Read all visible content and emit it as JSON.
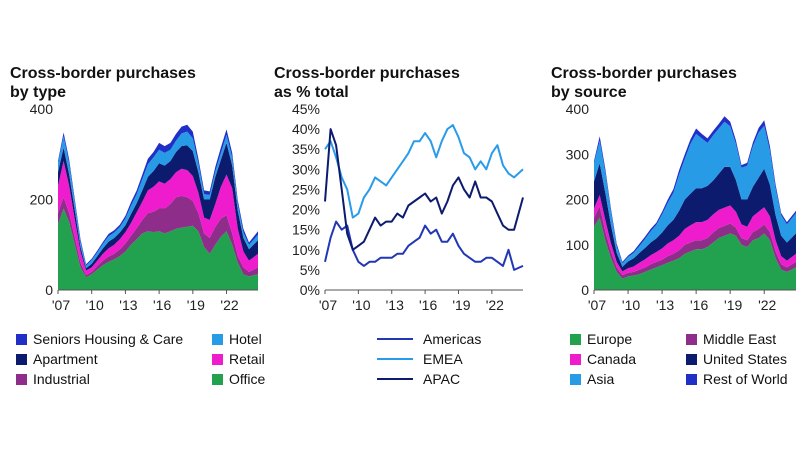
{
  "chart_data": [
    {
      "type": "area",
      "stacked": true,
      "title": "Cross-border purchases by type",
      "title_lines": [
        "Cross-border purchases",
        "by type"
      ],
      "xlabel": "",
      "ylabel": "",
      "ylim": [
        0,
        400
      ],
      "y_ticks": [
        0,
        200,
        400
      ],
      "y_tick_labels": [
        "0",
        "200",
        "400"
      ],
      "xlim": [
        2007,
        2024.8
      ],
      "x_ticks": [
        2007,
        2010,
        2013,
        2016,
        2019,
        2022
      ],
      "x_tick_labels": [
        "'07",
        "'10",
        "'13",
        "'16",
        "'19",
        "'22"
      ],
      "x": [
        2007.0,
        2007.5,
        2008.0,
        2008.5,
        2009.0,
        2009.5,
        2010.0,
        2010.5,
        2011.0,
        2011.5,
        2012.0,
        2012.5,
        2013.0,
        2013.5,
        2014.0,
        2014.5,
        2015.0,
        2015.5,
        2016.0,
        2016.5,
        2017.0,
        2017.5,
        2018.0,
        2018.5,
        2019.0,
        2019.5,
        2020.0,
        2020.5,
        2021.0,
        2021.5,
        2022.0,
        2022.5,
        2023.0,
        2023.5,
        2024.0,
        2024.8
      ],
      "series": [
        {
          "name": "Office",
          "color": "#22a14e",
          "values": [
            145,
            180,
            150,
            100,
            50,
            28,
            35,
            45,
            55,
            62,
            68,
            75,
            85,
            100,
            112,
            125,
            130,
            128,
            130,
            125,
            130,
            135,
            138,
            140,
            142,
            130,
            95,
            80,
            100,
            118,
            130,
            100,
            60,
            35,
            30,
            35
          ]
        },
        {
          "name": "Industrial",
          "color": "#8e2d8a",
          "values": [
            25,
            25,
            20,
            15,
            10,
            5,
            5,
            8,
            10,
            12,
            12,
            15,
            18,
            20,
            25,
            30,
            40,
            45,
            50,
            55,
            60,
            70,
            70,
            65,
            55,
            40,
            30,
            35,
            40,
            40,
            35,
            25,
            15,
            15,
            10,
            15
          ]
        },
        {
          "name": "Retail",
          "color": "#ee1ccd",
          "values": [
            60,
            80,
            60,
            40,
            25,
            10,
            10,
            12,
            15,
            18,
            20,
            22,
            25,
            28,
            35,
            40,
            50,
            55,
            60,
            55,
            55,
            55,
            60,
            60,
            55,
            45,
            35,
            40,
            50,
            70,
            90,
            100,
            60,
            35,
            25,
            30
          ]
        },
        {
          "name": "Apartment",
          "color": "#0c1b6e",
          "values": [
            30,
            30,
            25,
            20,
            10,
            5,
            8,
            10,
            12,
            15,
            15,
            15,
            15,
            20,
            20,
            25,
            30,
            35,
            40,
            40,
            40,
            45,
            50,
            55,
            55,
            45,
            40,
            45,
            60,
            60,
            70,
            50,
            40,
            30,
            25,
            30
          ]
        },
        {
          "name": "Hotel",
          "color": "#279be6",
          "values": [
            20,
            25,
            25,
            18,
            12,
            6,
            8,
            8,
            10,
            12,
            12,
            12,
            15,
            18,
            20,
            25,
            28,
            30,
            30,
            28,
            25,
            25,
            28,
            30,
            28,
            20,
            12,
            10,
            12,
            15,
            18,
            18,
            15,
            12,
            10,
            12
          ]
        },
        {
          "name": "Seniors Housing & Care",
          "color": "#2030c7",
          "values": [
            5,
            8,
            8,
            6,
            5,
            3,
            3,
            4,
            4,
            5,
            5,
            5,
            6,
            8,
            8,
            10,
            12,
            12,
            15,
            15,
            15,
            15,
            15,
            15,
            15,
            10,
            8,
            8,
            10,
            12,
            12,
            10,
            8,
            8,
            5,
            8
          ]
        }
      ],
      "legend_order": [
        "Seniors Housing & Care",
        "Hotel",
        "Apartment",
        "Retail",
        "Industrial",
        "Office"
      ]
    },
    {
      "type": "line",
      "title": "Cross-border purchases as % total",
      "title_lines": [
        "Cross-border purchases",
        "as % total"
      ],
      "xlabel": "",
      "ylabel": "",
      "ylim": [
        0,
        45
      ],
      "y_ticks": [
        0,
        5,
        10,
        15,
        20,
        25,
        30,
        35,
        40,
        45
      ],
      "y_tick_labels": [
        "0%",
        "5%",
        "10%",
        "15%",
        "20%",
        "25%",
        "30%",
        "35%",
        "40%",
        "45%"
      ],
      "xlim": [
        2007,
        2024.8
      ],
      "x_ticks": [
        2007,
        2010,
        2013,
        2016,
        2019,
        2022
      ],
      "x_tick_labels": [
        "'07",
        "'10",
        "'13",
        "'16",
        "'19",
        "'22"
      ],
      "x": [
        2007.0,
        2007.5,
        2008.0,
        2008.5,
        2009.0,
        2009.5,
        2010.0,
        2010.5,
        2011.0,
        2011.5,
        2012.0,
        2012.5,
        2013.0,
        2013.5,
        2014.0,
        2014.5,
        2015.0,
        2015.5,
        2016.0,
        2016.5,
        2017.0,
        2017.5,
        2018.0,
        2018.5,
        2019.0,
        2019.5,
        2020.0,
        2020.5,
        2021.0,
        2021.5,
        2022.0,
        2022.5,
        2023.0,
        2023.5,
        2024.0,
        2024.8
      ],
      "series": [
        {
          "name": "Americas",
          "color": "#2237b5",
          "values": [
            7,
            13,
            17,
            15,
            16,
            10,
            7,
            6,
            7,
            7,
            8,
            8,
            8,
            9,
            9,
            11,
            12,
            13,
            16,
            14,
            15,
            12,
            12,
            14,
            11,
            9,
            8,
            7,
            7,
            8,
            8,
            7,
            6,
            10,
            5,
            6
          ]
        },
        {
          "name": "EMEA",
          "color": "#299bea",
          "values": [
            35,
            37,
            33,
            28,
            25,
            18,
            19,
            23,
            25,
            28,
            27,
            26,
            28,
            30,
            32,
            34,
            37,
            37,
            39,
            37,
            33,
            37,
            40,
            41,
            38,
            34,
            33,
            30,
            32,
            30,
            34,
            36,
            31,
            29,
            28,
            30
          ]
        },
        {
          "name": "APAC",
          "color": "#0c1b6e",
          "values": [
            22,
            40,
            36,
            25,
            14,
            10,
            11,
            12,
            15,
            18,
            16,
            17,
            17,
            19,
            18,
            21,
            22,
            23,
            24,
            22,
            23,
            19,
            22,
            26,
            28,
            25,
            23,
            27,
            23,
            23,
            22,
            19,
            16,
            15,
            15,
            23
          ]
        }
      ],
      "legend_order": [
        "Americas",
        "EMEA",
        "APAC"
      ]
    },
    {
      "type": "area",
      "stacked": true,
      "title": "Cross-border purchases by source",
      "title_lines": [
        "Cross-border purchases",
        "by source"
      ],
      "xlabel": "",
      "ylabel": "",
      "ylim": [
        0,
        400
      ],
      "y_ticks": [
        0,
        100,
        200,
        300,
        400
      ],
      "y_tick_labels": [
        "0",
        "100",
        "200",
        "300",
        "400"
      ],
      "xlim": [
        2007,
        2024.8
      ],
      "x_ticks": [
        2007,
        2010,
        2013,
        2016,
        2019,
        2022
      ],
      "x_tick_labels": [
        "'07",
        "'10",
        "'13",
        "'16",
        "'19",
        "'22"
      ],
      "x": [
        2007.0,
        2007.5,
        2008.0,
        2008.5,
        2009.0,
        2009.5,
        2010.0,
        2010.5,
        2011.0,
        2011.5,
        2012.0,
        2012.5,
        2013.0,
        2013.5,
        2014.0,
        2014.5,
        2015.0,
        2015.5,
        2016.0,
        2016.5,
        2017.0,
        2017.5,
        2018.0,
        2018.5,
        2019.0,
        2019.5,
        2020.0,
        2020.5,
        2021.0,
        2021.5,
        2022.0,
        2022.5,
        2023.0,
        2023.5,
        2024.0,
        2024.8
      ],
      "series": [
        {
          "name": "Europe",
          "color": "#22a14e",
          "values": [
            140,
            160,
            110,
            70,
            40,
            25,
            30,
            32,
            35,
            40,
            45,
            50,
            55,
            60,
            65,
            70,
            80,
            85,
            90,
            90,
            95,
            105,
            115,
            120,
            125,
            120,
            100,
            95,
            110,
            115,
            125,
            110,
            70,
            45,
            40,
            50
          ]
        },
        {
          "name": "Middle East",
          "color": "#8e2d8a",
          "values": [
            20,
            25,
            20,
            15,
            10,
            8,
            8,
            8,
            10,
            10,
            12,
            12,
            12,
            15,
            15,
            18,
            20,
            20,
            20,
            20,
            20,
            22,
            22,
            22,
            22,
            18,
            15,
            15,
            18,
            20,
            20,
            18,
            15,
            12,
            10,
            12
          ]
        },
        {
          "name": "Canada",
          "color": "#ee1ccd",
          "values": [
            20,
            25,
            25,
            18,
            12,
            8,
            10,
            12,
            15,
            18,
            20,
            22,
            25,
            28,
            30,
            32,
            35,
            38,
            40,
            40,
            40,
            40,
            40,
            40,
            40,
            35,
            30,
            30,
            35,
            38,
            38,
            35,
            25,
            18,
            15,
            18
          ]
        },
        {
          "name": "United States",
          "color": "#0c1b6e",
          "values": [
            60,
            70,
            60,
            40,
            20,
            10,
            15,
            18,
            22,
            25,
            28,
            30,
            35,
            40,
            45,
            55,
            65,
            70,
            75,
            75,
            75,
            75,
            80,
            90,
            85,
            70,
            55,
            60,
            65,
            75,
            85,
            70,
            55,
            45,
            40,
            45
          ]
        },
        {
          "name": "Asia",
          "color": "#279be6",
          "values": [
            40,
            50,
            45,
            30,
            15,
            8,
            10,
            12,
            15,
            20,
            25,
            30,
            40,
            50,
            60,
            80,
            90,
            110,
            120,
            110,
            95,
            100,
            100,
            100,
            90,
            80,
            70,
            75,
            90,
            100,
            95,
            75,
            60,
            45,
            40,
            45
          ]
        },
        {
          "name": "Rest of World",
          "color": "#2030c7",
          "values": [
            5,
            10,
            8,
            6,
            5,
            3,
            3,
            4,
            5,
            5,
            5,
            5,
            6,
            7,
            8,
            10,
            10,
            10,
            12,
            10,
            10,
            10,
            10,
            12,
            10,
            8,
            6,
            6,
            8,
            10,
            12,
            10,
            8,
            5,
            5,
            5
          ]
        }
      ],
      "legend_order": [
        "Europe",
        "Middle East",
        "Canada",
        "United States",
        "Asia",
        "Rest of World"
      ]
    }
  ]
}
